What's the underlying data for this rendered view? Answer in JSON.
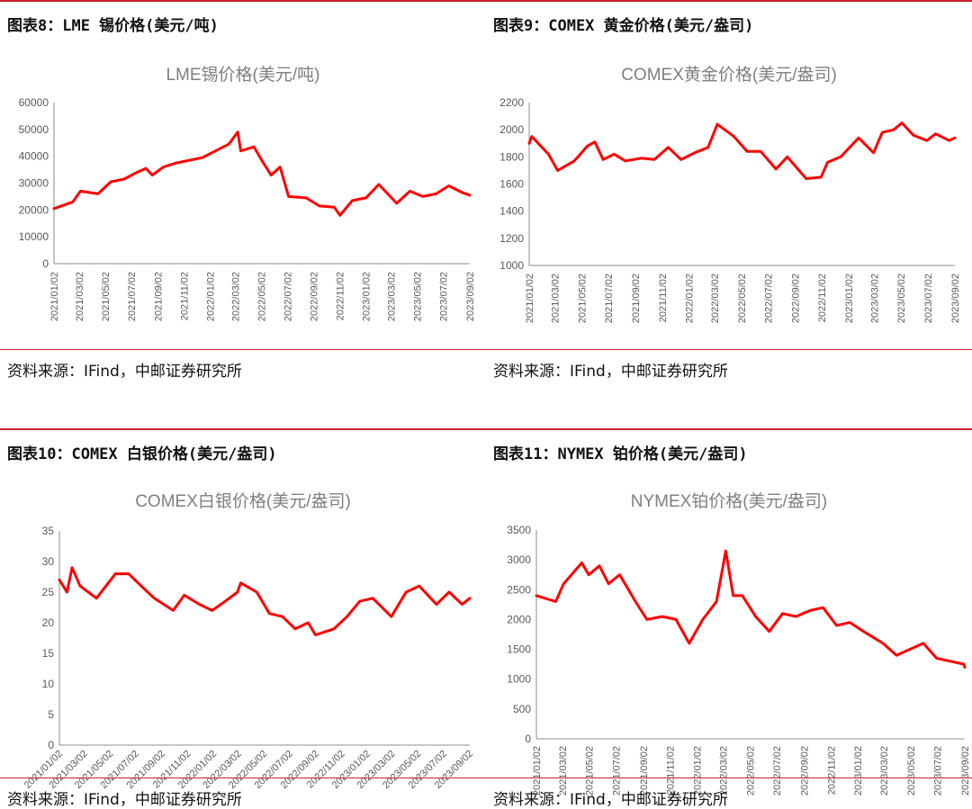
{
  "panels": [
    {
      "header": "图表8：LME 锡价格(美元/吨)",
      "source": "资料来源：IFind，中邮证券研究所"
    },
    {
      "header": "图表9：COMEX 黄金价格(美元/盎司)",
      "source": "资料来源：IFind，中邮证券研究所"
    },
    {
      "header": "图表10：COMEX 白银价格(美元/盎司)",
      "source": "资料来源：IFind，中邮证券研究所"
    },
    {
      "header": "图表11：NYMEX 铂价格(美元/盎司)",
      "source": "资料来源：IFind，中邮证券研究所"
    }
  ],
  "colors": {
    "accent": "#c8202f",
    "series": "#ff0000",
    "title": "#7f7f7f",
    "axis": "#595959"
  },
  "chart_data": [
    {
      "type": "line",
      "title": "LME锡价格(美元/吨)",
      "ylim": [
        0,
        60000
      ],
      "yticks": [
        "60000",
        "50000",
        "40000",
        "30000",
        "20000",
        "10000",
        "0"
      ],
      "xticks": [
        "2021/01/02",
        "2021/03/02",
        "2021/05/02",
        "2021/07/02",
        "2021/09/02",
        "2021/11/02",
        "2022/01/02",
        "2022/03/02",
        "2022/05/02",
        "2022/07/02",
        "2022/09/02",
        "2022/11/02",
        "2023/01/02",
        "2023/03/02",
        "2023/05/02",
        "2023/07/02",
        "2023/09/02"
      ],
      "x": [
        "2021/01/02",
        "2021/02/15",
        "2021/03/05",
        "2021/04/15",
        "2021/05/15",
        "2021/06/15",
        "2021/07/15",
        "2021/08/05",
        "2021/08/20",
        "2021/09/15",
        "2021/10/15",
        "2021/11/15",
        "2021/12/15",
        "2022/01/15",
        "2022/02/15",
        "2022/03/08",
        "2022/03/15",
        "2022/04/15",
        "2022/05/05",
        "2022/05/25",
        "2022/06/15",
        "2022/07/05",
        "2022/08/15",
        "2022/09/15",
        "2022/10/20",
        "2022/11/02",
        "2022/12/01",
        "2023/01/02",
        "2023/02/01",
        "2023/03/15",
        "2023/04/15",
        "2023/05/15",
        "2023/06/15",
        "2023/07/15",
        "2023/08/15",
        "2023/09/02"
      ],
      "y": [
        20500,
        23000,
        27000,
        26000,
        30500,
        31500,
        34000,
        35500,
        33000,
        36000,
        37500,
        38500,
        39500,
        42000,
        44500,
        49000,
        42000,
        43500,
        38000,
        33000,
        36000,
        25000,
        24500,
        21500,
        21000,
        18000,
        23500,
        24500,
        29500,
        22500,
        27000,
        25000,
        26000,
        29000,
        26500,
        25500
      ]
    },
    {
      "type": "line",
      "title": "COMEX黄金价格(美元/盎司)",
      "ylim": [
        1000,
        2200
      ],
      "yticks": [
        "2200",
        "2000",
        "1800",
        "1600",
        "1400",
        "1200",
        "1000"
      ],
      "xticks": [
        "2021/01/02",
        "2021/03/02",
        "2021/05/02",
        "2021/07/02",
        "2021/09/02",
        "2021/11/02",
        "2022/01/02",
        "2022/03/02",
        "2022/05/02",
        "2022/07/02",
        "2022/09/02",
        "2022/11/02",
        "2023/01/02",
        "2023/03/02",
        "2023/05/02",
        "2023/07/02",
        "2023/09/02"
      ],
      "x": [
        "2021/01/02",
        "2021/01/08",
        "2021/02/15",
        "2021/03/08",
        "2021/04/15",
        "2021/05/15",
        "2021/06/01",
        "2021/06/20",
        "2021/07/15",
        "2021/08/10",
        "2021/09/15",
        "2021/10/15",
        "2021/11/16",
        "2021/12/15",
        "2022/01/15",
        "2022/02/15",
        "2022/03/08",
        "2022/04/15",
        "2022/05/15",
        "2022/06/15",
        "2022/07/20",
        "2022/08/15",
        "2022/09/27",
        "2022/10/31",
        "2022/11/15",
        "2022/12/15",
        "2023/01/25",
        "2023/02/28",
        "2023/03/20",
        "2023/04/15",
        "2023/05/04",
        "2023/05/30",
        "2023/06/30",
        "2023/07/20",
        "2023/08/20",
        "2023/09/02"
      ],
      "y": [
        1900,
        1950,
        1820,
        1700,
        1770,
        1880,
        1910,
        1780,
        1820,
        1770,
        1790,
        1780,
        1870,
        1780,
        1830,
        1870,
        2040,
        1950,
        1840,
        1840,
        1710,
        1800,
        1640,
        1650,
        1760,
        1800,
        1940,
        1830,
        1980,
        2000,
        2050,
        1960,
        1920,
        1970,
        1920,
        1940
      ]
    },
    {
      "type": "line",
      "title": "COMEX白银价格(美元/盎司)",
      "ylim": [
        0,
        35
      ],
      "yticks": [
        "35",
        "30",
        "25",
        "20",
        "15",
        "10",
        "5",
        "0"
      ],
      "xticks": [
        "2021/01/02",
        "2021/03/02",
        "2021/05/02",
        "2021/07/02",
        "2021/09/02",
        "2021/11/02",
        "2022/01/02",
        "2022/03/02",
        "2022/05/02",
        "2022/07/02",
        "2022/09/02",
        "2022/11/02",
        "2023/01/02",
        "2023/03/02",
        "2023/05/02",
        "2023/07/02",
        "2023/09/02"
      ],
      "x": [
        "2021/01/02",
        "2021/01/20",
        "2021/02/01",
        "2021/02/20",
        "2021/03/31",
        "2021/05/15",
        "2021/06/15",
        "2021/07/15",
        "2021/08/15",
        "2021/09/29",
        "2021/10/25",
        "2021/11/30",
        "2021/12/30",
        "2022/01/30",
        "2022/02/28",
        "2022/03/08",
        "2022/04/15",
        "2022/05/15",
        "2022/06/15",
        "2022/07/15",
        "2022/08/15",
        "2022/09/01",
        "2022/10/15",
        "2022/11/15",
        "2022/12/15",
        "2023/01/15",
        "2023/02/28",
        "2023/04/04",
        "2023/05/05",
        "2023/06/15",
        "2023/07/15",
        "2023/08/15",
        "2023/09/02"
      ],
      "y": [
        27,
        25,
        29,
        26,
        24,
        28,
        28,
        26,
        24,
        22,
        24.5,
        23,
        22,
        23.5,
        25,
        26.5,
        25,
        21.5,
        21,
        19,
        20,
        18,
        19,
        21,
        23.5,
        24,
        21,
        25,
        26,
        23,
        25,
        23,
        24
      ]
    },
    {
      "type": "line",
      "title": "NYMEX铂价格(美元/盎司)",
      "ylim": [
        0,
        3500
      ],
      "yticks": [
        "3500",
        "3000",
        "2500",
        "2000",
        "1500",
        "1000",
        "500",
        "0"
      ],
      "xticks": [
        "2021/01/02",
        "2021/03/02",
        "2021/05/02",
        "2021/07/02",
        "2021/09/02",
        "2021/11/02",
        "2022/01/02",
        "2022/03/02",
        "2022/05/02",
        "2022/07/02",
        "2022/09/02",
        "2022/11/02",
        "2023/01/02",
        "2023/03/02",
        "2023/05/02",
        "2023/07/02",
        "2023/09/02"
      ],
      "x": [
        "2021/01/02",
        "2021/02/15",
        "2021/03/05",
        "2021/04/15",
        "2021/05/01",
        "2021/05/25",
        "2021/06/15",
        "2021/07/10",
        "2021/08/15",
        "2021/09/10",
        "2021/10/15",
        "2021/11/15",
        "2021/12/15",
        "2022/01/15",
        "2022/02/15",
        "2022/03/08",
        "2022/03/25",
        "2022/04/15",
        "2022/05/15",
        "2022/06/15",
        "2022/07/15",
        "2022/08/15",
        "2022/09/15",
        "2022/10/15",
        "2022/11/15",
        "2022/12/15",
        "2023/01/15",
        "2023/02/28",
        "2023/03/31",
        "2023/04/30",
        "2023/05/31",
        "2023/06/30",
        "2023/07/31",
        "2023/08/31",
        "2023/09/02"
      ],
      "y": [
        2400,
        2300,
        2600,
        2950,
        2750,
        2900,
        2600,
        2750,
        2300,
        2000,
        2050,
        2000,
        1600,
        2000,
        2300,
        3150,
        2400,
        2400,
        2050,
        1800,
        2100,
        2050,
        2150,
        2200,
        1900,
        1950,
        1800,
        1600,
        1400,
        1500,
        1600,
        1350,
        1300,
        1250,
        1200
      ]
    }
  ]
}
